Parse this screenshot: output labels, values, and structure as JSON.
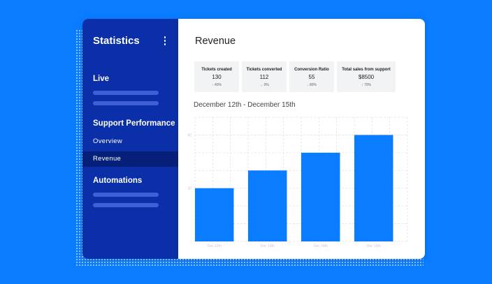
{
  "sidebar": {
    "title": "Statistics",
    "menu_icon": "kebab-vertical-icon",
    "sections": {
      "live": "Live",
      "support_performance": "Support Performance",
      "automations": "Automations"
    },
    "items": [
      {
        "label": "Overview",
        "active": false
      },
      {
        "label": "Revenue",
        "active": true
      }
    ]
  },
  "main": {
    "title": "Revenue",
    "date_range": "December 12th - December 15th",
    "cards": [
      {
        "label": "Tickets created",
        "value": "130",
        "delta": "40%",
        "trend": "up"
      },
      {
        "label": "Tickets converted",
        "value": "112",
        "delta": "0%",
        "trend": "flat"
      },
      {
        "label": "Conversion Ratio",
        "value": "55",
        "delta": "80%",
        "trend": "down"
      },
      {
        "label": "Total sales from support",
        "value": "$8500",
        "delta": "70%",
        "trend": "up"
      }
    ]
  },
  "chart_data": {
    "type": "bar",
    "categories": [
      "Dec 12th",
      "Dec 13th",
      "Dec 14th",
      "Dec 15th"
    ],
    "values": [
      30,
      40,
      50,
      60
    ],
    "y_ticks": [
      {
        "label": "30",
        "value": 30
      },
      {
        "label": "60",
        "value": 60
      }
    ],
    "ylim": [
      0,
      70
    ],
    "grid": true,
    "bar_color": "#0a7cff"
  },
  "colors": {
    "background": "#0a7cff",
    "sidebar": "#0a2fa8",
    "sidebar_active": "#06207a",
    "accent": "#0a7cff",
    "negative": "#e0524a"
  }
}
